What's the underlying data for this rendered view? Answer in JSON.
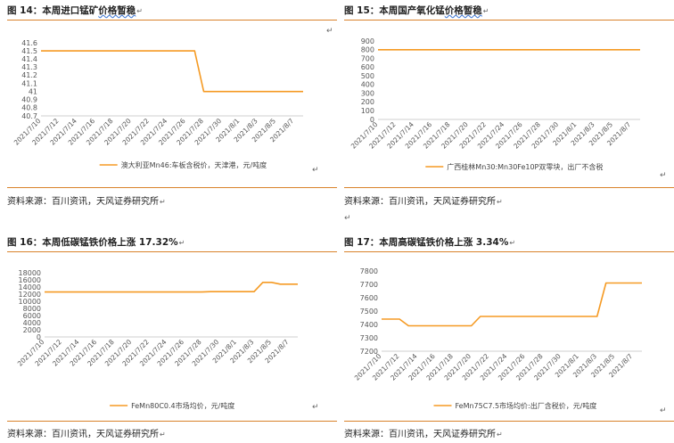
{
  "panels": [
    {
      "title_prefix": "图 14：本周进口锰矿",
      "title_wavy": "价格暂稳",
      "source": "资料来源：百川资讯，天风证券研究所",
      "chart_data": {
        "type": "line",
        "x": [
          "2021/7/10",
          "2021/7/11",
          "2021/7/12",
          "2021/7/13",
          "2021/7/14",
          "2021/7/15",
          "2021/7/16",
          "2021/7/17",
          "2021/7/18",
          "2021/7/19",
          "2021/7/20",
          "2021/7/21",
          "2021/7/22",
          "2021/7/23",
          "2021/7/24",
          "2021/7/25",
          "2021/7/26",
          "2021/7/27",
          "2021/7/28",
          "2021/7/29",
          "2021/7/30",
          "2021/7/31",
          "2021/8/1",
          "2021/8/2",
          "2021/8/3",
          "2021/8/4",
          "2021/8/5",
          "2021/8/6",
          "2021/8/7",
          "2021/8/8"
        ],
        "xticks": [
          "2021/7/10",
          "2021/7/12",
          "2021/7/14",
          "2021/7/16",
          "2021/7/18",
          "2021/7/20",
          "2021/7/22",
          "2021/7/24",
          "2021/7/26",
          "2021/7/28",
          "2021/7/30",
          "2021/8/1",
          "2021/8/3",
          "2021/8/5",
          "2021/8/7"
        ],
        "series": [
          {
            "name": "澳大利亚Mn46:车板含税价，天津港，元/吨度",
            "color": "#f59a23",
            "values": [
              41.5,
              41.5,
              41.5,
              41.5,
              41.5,
              41.5,
              41.5,
              41.5,
              41.5,
              41.5,
              41.5,
              41.5,
              41.5,
              41.5,
              41.5,
              41.5,
              41.5,
              41.5,
              41.0,
              41.0,
              41.0,
              41.0,
              41.0,
              41.0,
              41.0,
              41.0,
              41.0,
              41.0,
              41.0,
              41.0
            ]
          }
        ],
        "yticks": [
          "41.6",
          "41.5",
          "41.4",
          "41.3",
          "41.2",
          "41.1",
          "41",
          "40.9",
          "40.8",
          "40.7"
        ],
        "ylim": [
          40.7,
          41.6
        ],
        "grid": false,
        "legend": "bottom"
      }
    },
    {
      "title_prefix": "图 15：本周国产氧化锰",
      "title_wavy": "价格暂稳",
      "source": "资料来源：百川资讯，天风证券研究所",
      "chart_data": {
        "type": "line",
        "x": [
          "2021/7/10",
          "2021/7/11",
          "2021/7/12",
          "2021/7/13",
          "2021/7/14",
          "2021/7/15",
          "2021/7/16",
          "2021/7/17",
          "2021/7/18",
          "2021/7/19",
          "2021/7/20",
          "2021/7/21",
          "2021/7/22",
          "2021/7/23",
          "2021/7/24",
          "2021/7/25",
          "2021/7/26",
          "2021/7/27",
          "2021/7/28",
          "2021/7/29",
          "2021/7/30",
          "2021/7/31",
          "2021/8/1",
          "2021/8/2",
          "2021/8/3",
          "2021/8/4",
          "2021/8/5",
          "2021/8/6",
          "2021/8/7",
          "2021/8/8"
        ],
        "xticks": [
          "2021/7/10",
          "2021/7/12",
          "2021/7/14",
          "2021/7/16",
          "2021/7/18",
          "2021/7/20",
          "2021/7/22",
          "2021/7/24",
          "2021/7/26",
          "2021/7/28",
          "2021/7/30",
          "2021/8/1",
          "2021/8/3",
          "2021/8/5",
          "2021/8/7"
        ],
        "series": [
          {
            "name": "广西桂林Mn30:Mn30Fe10P双零块，出厂不含税",
            "color": "#f59a23",
            "values": [
              800,
              800,
              800,
              800,
              800,
              800,
              800,
              800,
              800,
              800,
              800,
              800,
              800,
              800,
              800,
              800,
              800,
              800,
              800,
              800,
              800,
              800,
              800,
              800,
              800,
              800,
              800,
              800,
              800,
              800
            ]
          }
        ],
        "yticks": [
          "900",
          "800",
          "700",
          "600",
          "500",
          "400",
          "300",
          "200",
          "100",
          "0"
        ],
        "ylim": [
          0,
          900
        ],
        "grid": false,
        "legend": "bottom"
      }
    },
    {
      "title_prefix": "图 16：本周低碳锰铁价格上涨 17.32%",
      "title_wavy": "",
      "source": "资料来源：百川资讯，天风证券研究所",
      "chart_data": {
        "type": "line",
        "x": [
          "2021/7/10",
          "2021/7/11",
          "2021/7/12",
          "2021/7/13",
          "2021/7/14",
          "2021/7/15",
          "2021/7/16",
          "2021/7/17",
          "2021/7/18",
          "2021/7/19",
          "2021/7/20",
          "2021/7/21",
          "2021/7/22",
          "2021/7/23",
          "2021/7/24",
          "2021/7/25",
          "2021/7/26",
          "2021/7/27",
          "2021/7/28",
          "2021/7/29",
          "2021/7/30",
          "2021/7/31",
          "2021/8/1",
          "2021/8/2",
          "2021/8/3",
          "2021/8/4",
          "2021/8/5",
          "2021/8/6",
          "2021/8/7",
          "2021/8/8"
        ],
        "xticks": [
          "2021/7/10",
          "2021/7/12",
          "2021/7/14",
          "2021/7/16",
          "2021/7/18",
          "2021/7/20",
          "2021/7/22",
          "2021/7/24",
          "2021/7/26",
          "2021/7/28",
          "2021/7/30",
          "2021/8/1",
          "2021/8/3",
          "2021/8/5",
          "2021/8/7"
        ],
        "series": [
          {
            "name": "FeMn80C0.4市场均价，元/吨度",
            "color": "#f59a23",
            "values": [
              12600,
              12600,
              12600,
              12600,
              12600,
              12600,
              12600,
              12600,
              12600,
              12600,
              12600,
              12600,
              12600,
              12600,
              12600,
              12600,
              12600,
              12600,
              12600,
              12700,
              12700,
              12700,
              12700,
              12700,
              12700,
              15300,
              15300,
              14800,
              14800,
              14800
            ]
          }
        ],
        "yticks": [
          "18000",
          "16000",
          "14000",
          "12000",
          "10000",
          "8000",
          "6000",
          "4000",
          "2000",
          "0"
        ],
        "ylim": [
          0,
          18000
        ],
        "grid": false,
        "legend": "bottom"
      }
    },
    {
      "title_prefix": "图 17：本周高碳锰铁价格上涨 3.34%",
      "title_wavy": "",
      "source": "资料来源：百川资讯，天风证券研究所",
      "chart_data": {
        "type": "line",
        "x": [
          "2021/7/10",
          "2021/7/11",
          "2021/7/12",
          "2021/7/13",
          "2021/7/14",
          "2021/7/15",
          "2021/7/16",
          "2021/7/17",
          "2021/7/18",
          "2021/7/19",
          "2021/7/20",
          "2021/7/21",
          "2021/7/22",
          "2021/7/23",
          "2021/7/24",
          "2021/7/25",
          "2021/7/26",
          "2021/7/27",
          "2021/7/28",
          "2021/7/29",
          "2021/7/30",
          "2021/7/31",
          "2021/8/1",
          "2021/8/2",
          "2021/8/3",
          "2021/8/4",
          "2021/8/5",
          "2021/8/6",
          "2021/8/7",
          "2021/8/8"
        ],
        "xticks": [
          "2021/7/10",
          "2021/7/12",
          "2021/7/14",
          "2021/7/16",
          "2021/7/18",
          "2021/7/20",
          "2021/7/22",
          "2021/7/24",
          "2021/7/26",
          "2021/7/28",
          "2021/7/30",
          "2021/8/1",
          "2021/8/3",
          "2021/8/5",
          "2021/8/7"
        ],
        "series": [
          {
            "name": "FeMn75C7.5市场均价:出厂含税价，元/吨度",
            "color": "#f59a23",
            "values": [
              7440,
              7440,
              7440,
              7390,
              7390,
              7390,
              7390,
              7390,
              7390,
              7390,
              7390,
              7460,
              7460,
              7460,
              7460,
              7460,
              7460,
              7460,
              7460,
              7460,
              7460,
              7460,
              7460,
              7460,
              7460,
              7710,
              7710,
              7710,
              7710,
              7710
            ]
          }
        ],
        "yticks": [
          "7800",
          "7700",
          "7600",
          "7500",
          "7400",
          "7300",
          "7200"
        ],
        "ylim": [
          7200,
          7800
        ],
        "grid": false,
        "legend": "bottom"
      }
    }
  ]
}
